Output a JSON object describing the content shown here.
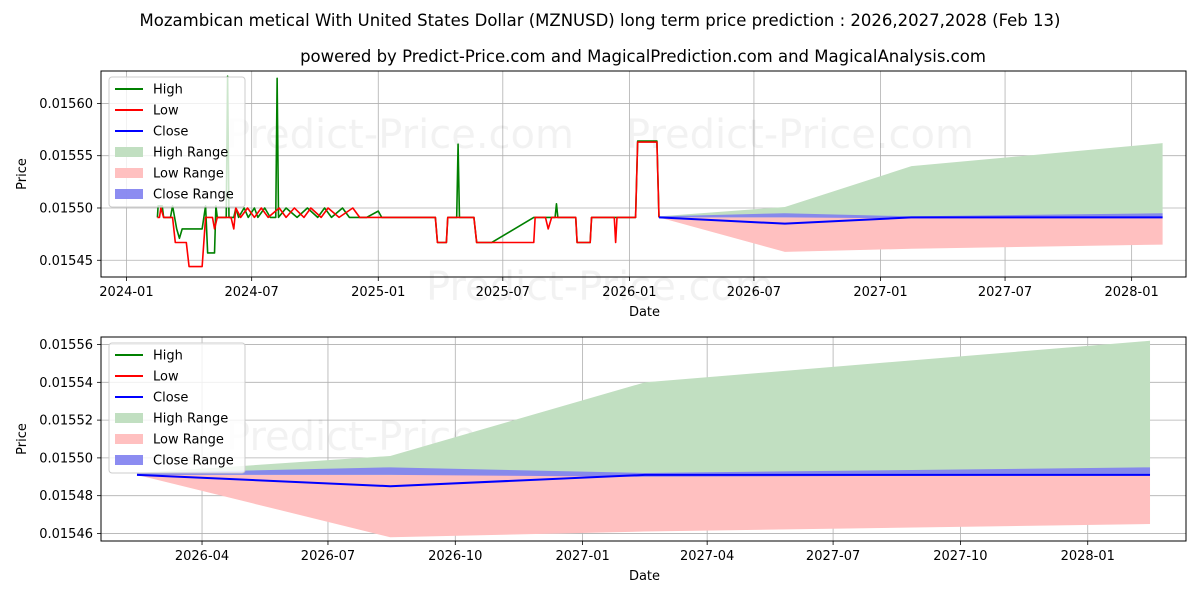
{
  "title": "Mozambican metical With United States Dollar (MZNUSD) long term price prediction : 2026,2027,2028 (Feb 13)",
  "subtitle": "powered by Predict-Price.com and MagicalPrediction.com and MagicalAnalysis.com",
  "watermark": "Predict-Price.com",
  "colors": {
    "high": "#008000",
    "low": "#ff0000",
    "close": "#0000ff",
    "high_range": "#c1dfc1",
    "low_range": "#ffc0c0",
    "close_range": "#7f7ff0"
  },
  "chart_data": [
    {
      "type": "line",
      "xlabel": "Date",
      "ylabel": "Price",
      "legend_position": "top-left",
      "grid": true,
      "xlim": [
        "2023-11-25",
        "2028-03-20"
      ],
      "ylim": [
        0.015434,
        0.015631
      ],
      "x_ticks": [
        {
          "date": "2024-01-01",
          "label": "2024-01"
        },
        {
          "date": "2024-07-01",
          "label": "2024-07"
        },
        {
          "date": "2025-01-01",
          "label": "2025-01"
        },
        {
          "date": "2025-07-01",
          "label": "2025-07"
        },
        {
          "date": "2026-01-01",
          "label": "2026-01"
        },
        {
          "date": "2026-07-01",
          "label": "2026-07"
        },
        {
          "date": "2027-01-01",
          "label": "2027-01"
        },
        {
          "date": "2027-07-01",
          "label": "2027-07"
        },
        {
          "date": "2028-01-01",
          "label": "2028-01"
        }
      ],
      "y_ticks": [
        0.01545,
        0.0155,
        0.01555,
        0.0156
      ],
      "y_tick_labels": [
        "0.01545",
        "0.01550",
        "0.01555",
        "0.01560"
      ],
      "legend": [
        "High",
        "Low",
        "Close",
        "High Range",
        "Low Range",
        "Close Range"
      ],
      "series": [
        {
          "name": "High",
          "points": [
            [
              "2024-02-15",
              0.015491
            ],
            [
              "2024-02-16",
              0.015502
            ],
            [
              "2024-02-22",
              0.015502
            ],
            [
              "2024-02-24",
              0.015491
            ],
            [
              "2024-03-05",
              0.015491
            ],
            [
              "2024-03-08",
              0.015502
            ],
            [
              "2024-03-14",
              0.01548
            ],
            [
              "2024-03-18",
              0.015471
            ],
            [
              "2024-03-22",
              0.01548
            ],
            [
              "2024-04-20",
              0.01548
            ],
            [
              "2024-04-25",
              0.015502
            ],
            [
              "2024-04-28",
              0.015457
            ],
            [
              "2024-05-08",
              0.015457
            ],
            [
              "2024-05-10",
              0.015502
            ],
            [
              "2024-05-12",
              0.015491
            ],
            [
              "2024-05-25",
              0.015491
            ],
            [
              "2024-05-27",
              0.015626
            ],
            [
              "2024-05-29",
              0.015491
            ],
            [
              "2024-06-05",
              0.015491
            ],
            [
              "2024-06-08",
              0.0155
            ],
            [
              "2024-06-12",
              0.015491
            ],
            [
              "2024-06-20",
              0.0155
            ],
            [
              "2024-06-26",
              0.015491
            ],
            [
              "2024-07-05",
              0.0155
            ],
            [
              "2024-07-10",
              0.015491
            ],
            [
              "2024-07-20",
              0.0155
            ],
            [
              "2024-07-28",
              0.015491
            ],
            [
              "2024-08-05",
              0.015491
            ],
            [
              "2024-08-07",
              0.015624
            ],
            [
              "2024-08-09",
              0.015491
            ],
            [
              "2024-08-20",
              0.0155
            ],
            [
              "2024-09-05",
              0.015491
            ],
            [
              "2024-09-20",
              0.0155
            ],
            [
              "2024-10-05",
              0.015491
            ],
            [
              "2024-10-15",
              0.0155
            ],
            [
              "2024-10-25",
              0.015491
            ],
            [
              "2024-11-10",
              0.0155
            ],
            [
              "2024-11-20",
              0.015491
            ],
            [
              "2024-12-15",
              0.015491
            ],
            [
              "2025-01-01",
              0.015497
            ],
            [
              "2025-01-06",
              0.015491
            ],
            [
              "2025-03-25",
              0.015491
            ],
            [
              "2025-03-28",
              0.015467
            ],
            [
              "2025-04-10",
              0.015467
            ],
            [
              "2025-04-12",
              0.015491
            ],
            [
              "2025-04-25",
              0.015491
            ],
            [
              "2025-04-27",
              0.015561
            ],
            [
              "2025-04-29",
              0.015491
            ],
            [
              "2025-05-20",
              0.015491
            ],
            [
              "2025-05-24",
              0.015467
            ],
            [
              "2025-06-15",
              0.015467
            ],
            [
              "2025-08-15",
              0.015491
            ],
            [
              "2025-09-15",
              0.015491
            ],
            [
              "2025-09-17",
              0.015504
            ],
            [
              "2025-09-19",
              0.015491
            ],
            [
              "2025-10-15",
              0.015491
            ],
            [
              "2025-10-17",
              0.015467
            ],
            [
              "2025-11-05",
              0.015467
            ],
            [
              "2025-11-07",
              0.015491
            ],
            [
              "2025-12-01",
              0.015491
            ],
            [
              "2025-12-20",
              0.015491
            ],
            [
              "2026-01-10",
              0.015491
            ],
            [
              "2026-01-13",
              0.015564
            ],
            [
              "2026-02-10",
              0.015564
            ],
            [
              "2026-02-13",
              0.015491
            ]
          ]
        },
        {
          "name": "Low",
          "points": [
            [
              "2024-02-15",
              0.015491
            ],
            [
              "2024-02-18",
              0.015491
            ],
            [
              "2024-02-20",
              0.0155
            ],
            [
              "2024-02-24",
              0.015491
            ],
            [
              "2024-03-08",
              0.015491
            ],
            [
              "2024-03-12",
              0.015467
            ],
            [
              "2024-03-28",
              0.015467
            ],
            [
              "2024-04-01",
              0.015444
            ],
            [
              "2024-04-20",
              0.015444
            ],
            [
              "2024-04-25",
              0.015491
            ],
            [
              "2024-05-05",
              0.015491
            ],
            [
              "2024-05-08",
              0.01548
            ],
            [
              "2024-05-12",
              0.015491
            ],
            [
              "2024-06-01",
              0.015491
            ],
            [
              "2024-06-05",
              0.01548
            ],
            [
              "2024-06-08",
              0.0155
            ],
            [
              "2024-06-15",
              0.015491
            ],
            [
              "2024-06-25",
              0.0155
            ],
            [
              "2024-07-05",
              0.015491
            ],
            [
              "2024-07-15",
              0.0155
            ],
            [
              "2024-07-25",
              0.015491
            ],
            [
              "2024-08-10",
              0.0155
            ],
            [
              "2024-08-20",
              0.015491
            ],
            [
              "2024-09-01",
              0.0155
            ],
            [
              "2024-09-15",
              0.015491
            ],
            [
              "2024-09-25",
              0.0155
            ],
            [
              "2024-10-10",
              0.015491
            ],
            [
              "2024-10-20",
              0.0155
            ],
            [
              "2024-11-05",
              0.015491
            ],
            [
              "2024-11-25",
              0.0155
            ],
            [
              "2024-12-05",
              0.015491
            ],
            [
              "2025-01-01",
              0.015491
            ],
            [
              "2025-03-25",
              0.015491
            ],
            [
              "2025-03-28",
              0.015467
            ],
            [
              "2025-04-10",
              0.015467
            ],
            [
              "2025-04-12",
              0.015491
            ],
            [
              "2025-05-20",
              0.015491
            ],
            [
              "2025-05-24",
              0.015467
            ],
            [
              "2025-08-15",
              0.015467
            ],
            [
              "2025-08-17",
              0.015491
            ],
            [
              "2025-09-01",
              0.015491
            ],
            [
              "2025-09-05",
              0.01548
            ],
            [
              "2025-09-10",
              0.015491
            ],
            [
              "2025-10-15",
              0.015491
            ],
            [
              "2025-10-17",
              0.015467
            ],
            [
              "2025-11-05",
              0.015467
            ],
            [
              "2025-11-07",
              0.015491
            ],
            [
              "2025-12-10",
              0.015491
            ],
            [
              "2025-12-12",
              0.015467
            ],
            [
              "2025-12-14",
              0.015491
            ],
            [
              "2026-01-10",
              0.015491
            ],
            [
              "2026-01-13",
              0.015563
            ],
            [
              "2026-02-10",
              0.015563
            ],
            [
              "2026-02-13",
              0.015491
            ]
          ]
        },
        {
          "name": "Close",
          "points": [
            [
              "2026-02-13",
              0.015491
            ],
            [
              "2026-08-15",
              0.015485
            ],
            [
              "2027-02-15",
              0.015491
            ],
            [
              "2028-02-15",
              0.015491
            ]
          ]
        }
      ],
      "ranges": [
        {
          "name": "High Range",
          "upper": [
            [
              "2026-02-13",
              0.015492
            ],
            [
              "2026-08-15",
              0.015501
            ],
            [
              "2027-02-15",
              0.01554
            ],
            [
              "2028-02-15",
              0.015562
            ]
          ],
          "lower": [
            [
              "2026-02-13",
              0.015491
            ],
            [
              "2028-02-15",
              0.015491
            ]
          ]
        },
        {
          "name": "Low Range",
          "upper": [
            [
              "2026-02-13",
              0.015491
            ],
            [
              "2028-02-15",
              0.015491
            ]
          ],
          "lower": [
            [
              "2026-02-13",
              0.015491
            ],
            [
              "2026-08-15",
              0.015458
            ],
            [
              "2027-02-15",
              0.015461
            ],
            [
              "2028-02-15",
              0.015465
            ]
          ]
        },
        {
          "name": "Close Range",
          "upper": [
            [
              "2026-02-13",
              0.015492
            ],
            [
              "2026-08-15",
              0.015495
            ],
            [
              "2027-02-15",
              0.015492
            ],
            [
              "2028-02-15",
              0.015495
            ]
          ],
          "lower": [
            [
              "2026-02-13",
              0.015491
            ],
            [
              "2026-08-15",
              0.015491
            ],
            [
              "2027-02-15",
              0.01549
            ],
            [
              "2028-02-15",
              0.015491
            ]
          ]
        }
      ]
    },
    {
      "type": "line",
      "xlabel": "Date",
      "ylabel": "Price",
      "legend_position": "top-left",
      "grid": true,
      "xlim": [
        "2026-01-18",
        "2028-03-12"
      ],
      "ylim": [
        0.015456,
        0.015564
      ],
      "x_ticks": [
        {
          "date": "2026-04-01",
          "label": "2026-04"
        },
        {
          "date": "2026-07-01",
          "label": "2026-07"
        },
        {
          "date": "2026-10-01",
          "label": "2026-10"
        },
        {
          "date": "2027-01-01",
          "label": "2027-01"
        },
        {
          "date": "2027-04-01",
          "label": "2027-04"
        },
        {
          "date": "2027-07-01",
          "label": "2027-07"
        },
        {
          "date": "2027-10-01",
          "label": "2027-10"
        },
        {
          "date": "2028-01-01",
          "label": "2028-01"
        }
      ],
      "y_ticks": [
        0.01546,
        0.01548,
        0.0155,
        0.01552,
        0.01554,
        0.01556
      ],
      "y_tick_labels": [
        "0.01546",
        "0.01548",
        "0.01550",
        "0.01552",
        "0.01554",
        "0.01556"
      ],
      "legend": [
        "High",
        "Low",
        "Close",
        "High Range",
        "Low Range",
        "Close Range"
      ],
      "series": [
        {
          "name": "High",
          "points": []
        },
        {
          "name": "Low",
          "points": []
        },
        {
          "name": "Close",
          "points": [
            [
              "2026-02-13",
              0.015491
            ],
            [
              "2026-08-15",
              0.015485
            ],
            [
              "2027-02-15",
              0.015491
            ],
            [
              "2028-02-15",
              0.015491
            ]
          ]
        }
      ],
      "ranges": [
        {
          "name": "High Range",
          "upper": [
            [
              "2026-02-13",
              0.015492
            ],
            [
              "2026-08-15",
              0.015501
            ],
            [
              "2027-02-15",
              0.01554
            ],
            [
              "2028-02-15",
              0.015562
            ]
          ],
          "lower": [
            [
              "2026-02-13",
              0.015491
            ],
            [
              "2028-02-15",
              0.015491
            ]
          ]
        },
        {
          "name": "Low Range",
          "upper": [
            [
              "2026-02-13",
              0.015491
            ],
            [
              "2028-02-15",
              0.015491
            ]
          ],
          "lower": [
            [
              "2026-02-13",
              0.015491
            ],
            [
              "2026-08-15",
              0.015458
            ],
            [
              "2027-02-15",
              0.015461
            ],
            [
              "2028-02-15",
              0.015465
            ]
          ]
        },
        {
          "name": "Close Range",
          "upper": [
            [
              "2026-02-13",
              0.015492
            ],
            [
              "2026-08-15",
              0.015495
            ],
            [
              "2027-02-15",
              0.015492
            ],
            [
              "2028-02-15",
              0.015495
            ]
          ],
          "lower": [
            [
              "2026-02-13",
              0.015491
            ],
            [
              "2026-08-15",
              0.015491
            ],
            [
              "2027-02-15",
              0.01549
            ],
            [
              "2028-02-15",
              0.015491
            ]
          ]
        }
      ]
    }
  ]
}
